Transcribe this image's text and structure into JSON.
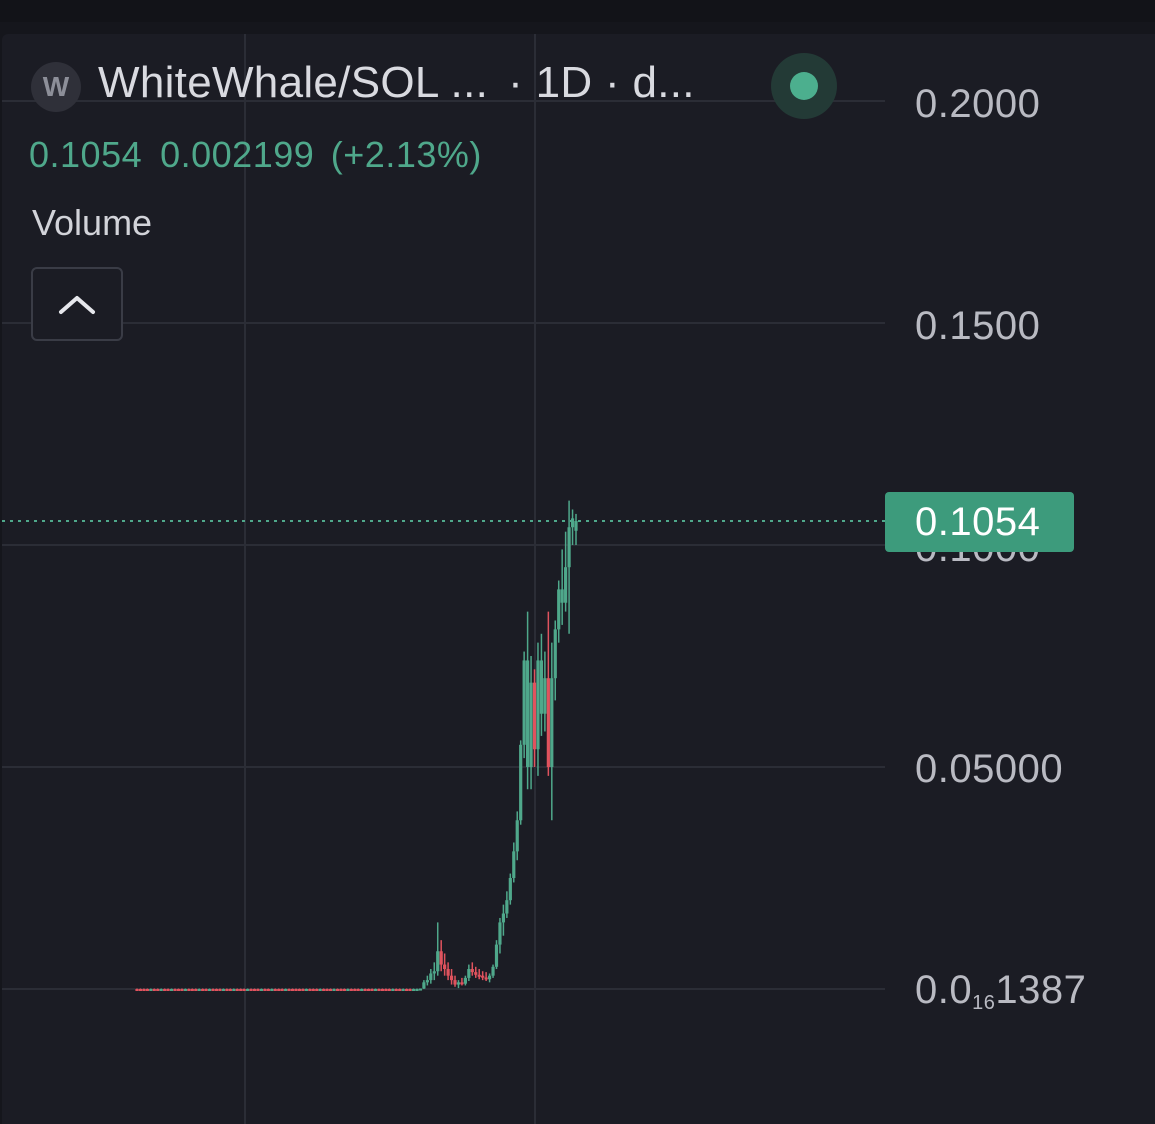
{
  "header": {
    "icon_letter": "W",
    "pair": "WhiteWhale/SOL ...",
    "timeframe": "· 1D · d...",
    "live_color": "#4caf8e"
  },
  "quote": {
    "price": "0.1054",
    "change": "0.002199",
    "change_pct": "(+2.13%)"
  },
  "indicators": {
    "volume_label": "Volume"
  },
  "axis": {
    "l1": "0.2000",
    "l2": "0.1500",
    "l3": "0.1000",
    "l4": "0.05000",
    "l5_a": "0.0",
    "l5_sub": "16",
    "l5_b": "1387"
  },
  "last_price": "0.1054",
  "colors": {
    "up": "#4fa88b",
    "down": "#e0535e",
    "grid": "#2b2d36",
    "last_price_line": "#4fa88b"
  },
  "chart_data": {
    "type": "candlestick",
    "interval": "1D",
    "ylim": [
      0,
      0.2
    ],
    "y_ticks": [
      "0.2000",
      "0.1500",
      "0.1000",
      "0.05000",
      "0.0₁₆1387"
    ],
    "last_price": 0.1054,
    "candles": [
      {
        "o": 0.0,
        "h": 0.0001,
        "l": 0.0,
        "c": 0.0,
        "up": false
      },
      {
        "o": 0.0,
        "h": 0.0001,
        "l": 0.0,
        "c": 0.0,
        "up": false
      },
      {
        "o": 0.0,
        "h": 0.0001,
        "l": 0.0,
        "c": 0.0,
        "up": false
      },
      {
        "o": 0.0,
        "h": 0.0001,
        "l": 0.0,
        "c": 0.0,
        "up": false
      },
      {
        "o": 0.0,
        "h": 0.0001,
        "l": 0.0,
        "c": 0.0,
        "up": true
      },
      {
        "o": 0.0,
        "h": 0.0001,
        "l": 0.0,
        "c": 0.0,
        "up": false
      },
      {
        "o": 0.0,
        "h": 0.0001,
        "l": 0.0,
        "c": 0.0,
        "up": false
      },
      {
        "o": 0.0,
        "h": 0.0001,
        "l": 0.0,
        "c": 0.0,
        "up": true
      },
      {
        "o": 0.0,
        "h": 0.0001,
        "l": 0.0,
        "c": 0.0,
        "up": false
      },
      {
        "o": 0.0,
        "h": 0.0001,
        "l": 0.0,
        "c": 0.0,
        "up": false
      },
      {
        "o": 0.0,
        "h": 0.0001,
        "l": 0.0,
        "c": 0.0,
        "up": true
      },
      {
        "o": 0.0,
        "h": 0.0001,
        "l": 0.0,
        "c": 0.0,
        "up": false
      },
      {
        "o": 0.0,
        "h": 0.0001,
        "l": 0.0,
        "c": 0.0,
        "up": false
      },
      {
        "o": 0.0,
        "h": 0.0001,
        "l": 0.0,
        "c": 0.0,
        "up": false
      },
      {
        "o": 0.0,
        "h": 0.0001,
        "l": 0.0,
        "c": 0.0,
        "up": true
      },
      {
        "o": 0.0,
        "h": 0.0001,
        "l": 0.0,
        "c": 0.0,
        "up": false
      },
      {
        "o": 0.0,
        "h": 0.0001,
        "l": 0.0,
        "c": 0.0,
        "up": false
      },
      {
        "o": 0.0,
        "h": 0.0001,
        "l": 0.0,
        "c": 0.0,
        "up": false
      },
      {
        "o": 0.0,
        "h": 0.0001,
        "l": 0.0,
        "c": 0.0,
        "up": true
      },
      {
        "o": 0.0,
        "h": 0.0001,
        "l": 0.0,
        "c": 0.0,
        "up": false
      },
      {
        "o": 0.0,
        "h": 0.0001,
        "l": 0.0,
        "c": 0.0,
        "up": false
      },
      {
        "o": 0.0,
        "h": 0.0001,
        "l": 0.0,
        "c": 0.0,
        "up": true
      },
      {
        "o": 0.0,
        "h": 0.0001,
        "l": 0.0,
        "c": 0.0,
        "up": false
      },
      {
        "o": 0.0,
        "h": 0.0001,
        "l": 0.0,
        "c": 0.0,
        "up": false
      },
      {
        "o": 0.0,
        "h": 0.0001,
        "l": 0.0,
        "c": 0.0,
        "up": false
      },
      {
        "o": 0.0,
        "h": 0.0001,
        "l": 0.0,
        "c": 0.0,
        "up": true
      },
      {
        "o": 0.0,
        "h": 0.0001,
        "l": 0.0,
        "c": 0.0,
        "up": false
      },
      {
        "o": 0.0,
        "h": 0.0001,
        "l": 0.0,
        "c": 0.0,
        "up": false
      },
      {
        "o": 0.0,
        "h": 0.0001,
        "l": 0.0,
        "c": 0.0,
        "up": true
      },
      {
        "o": 0.0,
        "h": 0.0001,
        "l": 0.0,
        "c": 0.0,
        "up": false
      },
      {
        "o": 0.0,
        "h": 0.0001,
        "l": 0.0,
        "c": 0.0,
        "up": false
      },
      {
        "o": 0.0,
        "h": 0.0001,
        "l": 0.0,
        "c": 0.0,
        "up": false
      },
      {
        "o": 0.0,
        "h": 0.0001,
        "l": 0.0,
        "c": 0.0,
        "up": true
      },
      {
        "o": 0.0,
        "h": 0.0001,
        "l": 0.0,
        "c": 0.0,
        "up": false
      },
      {
        "o": 0.0,
        "h": 0.0001,
        "l": 0.0,
        "c": 0.0,
        "up": false
      },
      {
        "o": 0.0,
        "h": 0.0001,
        "l": 0.0,
        "c": 0.0,
        "up": false
      },
      {
        "o": 0.0,
        "h": 0.0001,
        "l": 0.0,
        "c": 0.0,
        "up": true
      },
      {
        "o": 0.0,
        "h": 0.0001,
        "l": 0.0,
        "c": 0.0,
        "up": false
      },
      {
        "o": 0.0,
        "h": 0.0001,
        "l": 0.0,
        "c": 0.0,
        "up": false
      },
      {
        "o": 0.0,
        "h": 0.0001,
        "l": 0.0,
        "c": 0.0,
        "up": true
      },
      {
        "o": 0.0,
        "h": 0.0001,
        "l": 0.0,
        "c": 0.0,
        "up": false
      },
      {
        "o": 0.0,
        "h": 0.0001,
        "l": 0.0,
        "c": 0.0,
        "up": false
      },
      {
        "o": 0.0,
        "h": 0.0001,
        "l": 0.0,
        "c": 0.0,
        "up": false
      },
      {
        "o": 0.0,
        "h": 0.0001,
        "l": 0.0,
        "c": 0.0,
        "up": true
      },
      {
        "o": 0.0,
        "h": 0.0001,
        "l": 0.0,
        "c": 0.0,
        "up": false
      },
      {
        "o": 0.0,
        "h": 0.0001,
        "l": 0.0,
        "c": 0.0,
        "up": false
      },
      {
        "o": 0.0,
        "h": 0.0001,
        "l": 0.0,
        "c": 0.0,
        "up": false
      },
      {
        "o": 0.0,
        "h": 0.0001,
        "l": 0.0,
        "c": 0.0,
        "up": false
      },
      {
        "o": 0.0,
        "h": 0.0001,
        "l": 0.0,
        "c": 0.0,
        "up": false
      },
      {
        "o": 0.0,
        "h": 0.0001,
        "l": 0.0,
        "c": 0.0,
        "up": true
      },
      {
        "o": 0.0,
        "h": 0.0001,
        "l": 0.0,
        "c": 0.0,
        "up": false
      },
      {
        "o": 0.0,
        "h": 0.0001,
        "l": 0.0,
        "c": 0.0,
        "up": false
      },
      {
        "o": 0.0,
        "h": 0.0001,
        "l": 0.0,
        "c": 0.0,
        "up": false
      },
      {
        "o": 0.0,
        "h": 0.0001,
        "l": 0.0,
        "c": 0.0,
        "up": true
      },
      {
        "o": 0.0,
        "h": 0.0001,
        "l": 0.0,
        "c": 0.0,
        "up": false
      },
      {
        "o": 0.0,
        "h": 0.0001,
        "l": 0.0,
        "c": 0.0,
        "up": false
      },
      {
        "o": 0.0,
        "h": 0.0001,
        "l": 0.0,
        "c": 0.0,
        "up": false
      },
      {
        "o": 0.0,
        "h": 0.0001,
        "l": 0.0,
        "c": 0.0,
        "up": true
      },
      {
        "o": 0.0,
        "h": 0.0001,
        "l": 0.0,
        "c": 0.0,
        "up": false
      },
      {
        "o": 0.0,
        "h": 0.0001,
        "l": 0.0,
        "c": 0.0,
        "up": false
      },
      {
        "o": 0.0,
        "h": 0.0001,
        "l": 0.0,
        "c": 0.0,
        "up": false
      },
      {
        "o": 0.0,
        "h": 0.0001,
        "l": 0.0,
        "c": 0.0,
        "up": true
      },
      {
        "o": 0.0,
        "h": 0.0001,
        "l": 0.0,
        "c": 0.0,
        "up": false
      },
      {
        "o": 0.0,
        "h": 0.0001,
        "l": 0.0,
        "c": 0.0,
        "up": false
      },
      {
        "o": 0.0,
        "h": 0.0001,
        "l": 0.0,
        "c": 0.0,
        "up": false
      },
      {
        "o": 0.0,
        "h": 0.0001,
        "l": 0.0,
        "c": 0.0,
        "up": true
      },
      {
        "o": 0.0,
        "h": 0.0001,
        "l": 0.0,
        "c": 0.0,
        "up": false
      },
      {
        "o": 0.0,
        "h": 0.0001,
        "l": 0.0,
        "c": 0.0,
        "up": false
      },
      {
        "o": 0.0,
        "h": 0.0001,
        "l": 0.0,
        "c": 0.0,
        "up": false
      },
      {
        "o": 0.0,
        "h": 0.0001,
        "l": 0.0,
        "c": 0.0,
        "up": true
      },
      {
        "o": 0.0,
        "h": 0.0001,
        "l": 0.0,
        "c": 0.0,
        "up": false
      },
      {
        "o": 0.0,
        "h": 0.0001,
        "l": 0.0,
        "c": 0.0,
        "up": false
      },
      {
        "o": 0.0,
        "h": 0.0001,
        "l": 0.0,
        "c": 0.0,
        "up": false
      },
      {
        "o": 0.0,
        "h": 0.0001,
        "l": 0.0,
        "c": 0.0,
        "up": false
      },
      {
        "o": 0.0,
        "h": 0.0001,
        "l": 0.0,
        "c": 0.0,
        "up": true
      },
      {
        "o": 0.0,
        "h": 0.0001,
        "l": 0.0,
        "c": 0.0,
        "up": false
      },
      {
        "o": 0.0,
        "h": 0.0001,
        "l": 0.0,
        "c": 0.0,
        "up": false
      },
      {
        "o": 0.0,
        "h": 0.0001,
        "l": 0.0,
        "c": 0.0,
        "up": true
      },
      {
        "o": 0.0,
        "h": 0.0001,
        "l": 0.0,
        "c": 0.0,
        "up": false
      },
      {
        "o": 0.0,
        "h": 0.0001,
        "l": 0.0,
        "c": 0.0,
        "up": false
      },
      {
        "o": 0.0,
        "h": 0.0001,
        "l": 0.0,
        "c": 0.0,
        "up": true
      },
      {
        "o": 0.0,
        "h": 0.0001,
        "l": 0.0,
        "c": 0.0,
        "up": true
      },
      {
        "o": 0.0,
        "h": 0.0001,
        "l": 0.0,
        "c": 0.0001,
        "up": true
      },
      {
        "o": 0.0001,
        "h": 0.002,
        "l": 0.0,
        "c": 0.0015,
        "up": true
      },
      {
        "o": 0.0015,
        "h": 0.003,
        "l": 0.0008,
        "c": 0.002,
        "up": true
      },
      {
        "o": 0.002,
        "h": 0.0045,
        "l": 0.0012,
        "c": 0.0035,
        "up": true
      },
      {
        "o": 0.0035,
        "h": 0.006,
        "l": 0.002,
        "c": 0.004,
        "up": true
      },
      {
        "o": 0.004,
        "h": 0.015,
        "l": 0.003,
        "c": 0.0085,
        "up": true
      },
      {
        "o": 0.0085,
        "h": 0.011,
        "l": 0.004,
        "c": 0.0055,
        "up": false
      },
      {
        "o": 0.0055,
        "h": 0.008,
        "l": 0.003,
        "c": 0.0045,
        "up": false
      },
      {
        "o": 0.0045,
        "h": 0.006,
        "l": 0.002,
        "c": 0.003,
        "up": false
      },
      {
        "o": 0.003,
        "h": 0.0045,
        "l": 0.001,
        "c": 0.002,
        "up": false
      },
      {
        "o": 0.002,
        "h": 0.003,
        "l": 0.0005,
        "c": 0.001,
        "up": false
      },
      {
        "o": 0.001,
        "h": 0.002,
        "l": 0.0002,
        "c": 0.0015,
        "up": true
      },
      {
        "o": 0.0015,
        "h": 0.0025,
        "l": 0.0008,
        "c": 0.0012,
        "up": false
      },
      {
        "o": 0.0012,
        "h": 0.003,
        "l": 0.0008,
        "c": 0.0025,
        "up": true
      },
      {
        "o": 0.0025,
        "h": 0.0055,
        "l": 0.0018,
        "c": 0.0045,
        "up": true
      },
      {
        "o": 0.0045,
        "h": 0.006,
        "l": 0.003,
        "c": 0.0038,
        "up": false
      },
      {
        "o": 0.0038,
        "h": 0.005,
        "l": 0.0025,
        "c": 0.0032,
        "up": false
      },
      {
        "o": 0.0032,
        "h": 0.0045,
        "l": 0.0022,
        "c": 0.003,
        "up": false
      },
      {
        "o": 0.003,
        "h": 0.004,
        "l": 0.002,
        "c": 0.0026,
        "up": false
      },
      {
        "o": 0.0026,
        "h": 0.0038,
        "l": 0.0018,
        "c": 0.0022,
        "up": false
      },
      {
        "o": 0.0022,
        "h": 0.0035,
        "l": 0.0015,
        "c": 0.003,
        "up": true
      },
      {
        "o": 0.003,
        "h": 0.0055,
        "l": 0.0025,
        "c": 0.005,
        "up": true
      },
      {
        "o": 0.005,
        "h": 0.011,
        "l": 0.0045,
        "c": 0.01,
        "up": true
      },
      {
        "o": 0.01,
        "h": 0.016,
        "l": 0.008,
        "c": 0.015,
        "up": true
      },
      {
        "o": 0.015,
        "h": 0.019,
        "l": 0.012,
        "c": 0.017,
        "up": true
      },
      {
        "o": 0.017,
        "h": 0.022,
        "l": 0.016,
        "c": 0.02,
        "up": true
      },
      {
        "o": 0.02,
        "h": 0.026,
        "l": 0.019,
        "c": 0.025,
        "up": true
      },
      {
        "o": 0.025,
        "h": 0.033,
        "l": 0.024,
        "c": 0.031,
        "up": true
      },
      {
        "o": 0.031,
        "h": 0.04,
        "l": 0.029,
        "c": 0.038,
        "up": true
      },
      {
        "o": 0.038,
        "h": 0.056,
        "l": 0.037,
        "c": 0.055,
        "up": true
      },
      {
        "o": 0.055,
        "h": 0.076,
        "l": 0.052,
        "c": 0.074,
        "up": true
      },
      {
        "o": 0.074,
        "h": 0.085,
        "l": 0.045,
        "c": 0.05,
        "up": true
      },
      {
        "o": 0.05,
        "h": 0.075,
        "l": 0.045,
        "c": 0.069,
        "up": true
      },
      {
        "o": 0.069,
        "h": 0.072,
        "l": 0.05,
        "c": 0.054,
        "up": false
      },
      {
        "o": 0.054,
        "h": 0.078,
        "l": 0.048,
        "c": 0.074,
        "up": true
      },
      {
        "o": 0.074,
        "h": 0.08,
        "l": 0.057,
        "c": 0.062,
        "up": true
      },
      {
        "o": 0.062,
        "h": 0.076,
        "l": 0.058,
        "c": 0.07,
        "up": true
      },
      {
        "o": 0.07,
        "h": 0.085,
        "l": 0.048,
        "c": 0.05,
        "up": false
      },
      {
        "o": 0.05,
        "h": 0.078,
        "l": 0.038,
        "c": 0.07,
        "up": true
      },
      {
        "o": 0.07,
        "h": 0.083,
        "l": 0.065,
        "c": 0.081,
        "up": true
      },
      {
        "o": 0.081,
        "h": 0.092,
        "l": 0.078,
        "c": 0.09,
        "up": true
      },
      {
        "o": 0.09,
        "h": 0.099,
        "l": 0.082,
        "c": 0.087,
        "up": true
      },
      {
        "o": 0.087,
        "h": 0.103,
        "l": 0.085,
        "c": 0.095,
        "up": true
      },
      {
        "o": 0.095,
        "h": 0.11,
        "l": 0.08,
        "c": 0.104,
        "up": true
      },
      {
        "o": 0.104,
        "h": 0.108,
        "l": 0.1,
        "c": 0.106,
        "up": true
      },
      {
        "o": 0.1032,
        "h": 0.107,
        "l": 0.1,
        "c": 0.1054,
        "up": true
      }
    ]
  }
}
